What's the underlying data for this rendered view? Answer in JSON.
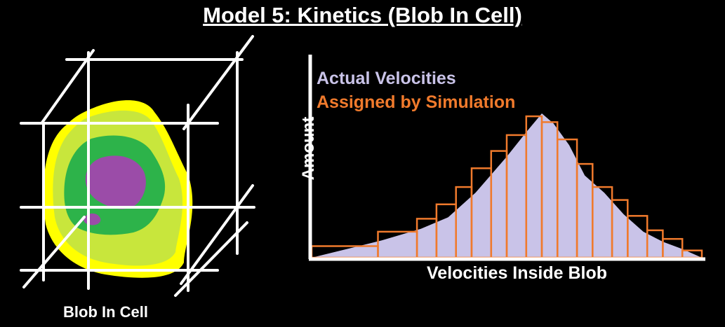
{
  "title": "Model 5: Kinetics (Blob In Cell)",
  "blob_caption": "Blob In Cell",
  "colors": {
    "background": "#000000",
    "grid": "#ffffff",
    "blob_outer": "#ffff00",
    "blob_light": "#c8e63c",
    "blob_mid": "#2db34a",
    "blob_core": "#9b4ca8",
    "actual": "#c9c3e8",
    "assigned": "#f07a2c"
  },
  "chart_data": {
    "type": "area",
    "title": "",
    "xlabel": "Velocities Inside Blob",
    "ylabel": "Amount",
    "grid": false,
    "legend": [
      {
        "name": "Actual Velocities",
        "color": "#c9c3e8"
      },
      {
        "name": "Assigned by Simulation",
        "color": "#f07a2c"
      }
    ],
    "xlim": [
      0,
      100
    ],
    "ylim": [
      0,
      100
    ],
    "series": [
      {
        "name": "Actual Velocities",
        "type": "area",
        "x": [
          0,
          18,
          28,
          35,
          42,
          50,
          55,
          59,
          62,
          66,
          70,
          75,
          80,
          85,
          90,
          95,
          100
        ],
        "y": [
          0,
          12,
          20,
          28,
          45,
          70,
          87,
          100,
          93,
          78,
          57,
          45,
          30,
          18,
          11,
          6,
          0
        ]
      },
      {
        "name": "Assigned by Simulation",
        "type": "bar",
        "bins": [
          {
            "x0": 0,
            "x1": 17,
            "y": 8
          },
          {
            "x0": 17,
            "x1": 27,
            "y": 18
          },
          {
            "x0": 27,
            "x1": 32,
            "y": 27
          },
          {
            "x0": 32,
            "x1": 37,
            "y": 37
          },
          {
            "x0": 37,
            "x1": 41,
            "y": 49
          },
          {
            "x0": 41,
            "x1": 46,
            "y": 62
          },
          {
            "x0": 46,
            "x1": 50,
            "y": 74
          },
          {
            "x0": 50,
            "x1": 55,
            "y": 85
          },
          {
            "x0": 55,
            "x1": 59,
            "y": 98
          },
          {
            "x0": 59,
            "x1": 63,
            "y": 94
          },
          {
            "x0": 63,
            "x1": 68,
            "y": 82
          },
          {
            "x0": 68,
            "x1": 72,
            "y": 65
          },
          {
            "x0": 72,
            "x1": 77,
            "y": 49
          },
          {
            "x0": 77,
            "x1": 81,
            "y": 40
          },
          {
            "x0": 81,
            "x1": 86,
            "y": 29
          },
          {
            "x0": 86,
            "x1": 90,
            "y": 19
          },
          {
            "x0": 90,
            "x1": 95,
            "y": 13
          },
          {
            "x0": 95,
            "x1": 100,
            "y": 5
          }
        ]
      }
    ]
  }
}
